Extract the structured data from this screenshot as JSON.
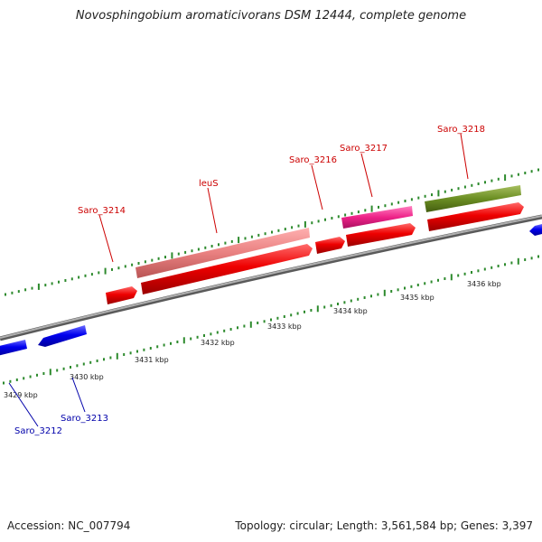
{
  "title": "Novosphingobium aromaticivorans DSM 12444, complete genome",
  "footer": {
    "accession": "Accession: NC_007794",
    "summary": "Topology: circular; Length: 3,561,584 bp; Genes: 3,397"
  },
  "colors": {
    "backbone": "#8a8a8a",
    "tick": "#2d8a2d",
    "gene_forward": "#ee0000",
    "gene_reverse": "#0000ee",
    "label_forward": "#cc0000",
    "label_reverse": "#0000aa",
    "gene_leuS": "#e98080",
    "gene_3217": "#ee2288",
    "gene_3218": "#6b8e23"
  },
  "ticks": [
    {
      "label": "3429 kbp"
    },
    {
      "label": "3430 kbp"
    },
    {
      "label": "3431 kbp"
    },
    {
      "label": "3432 kbp"
    },
    {
      "label": "3433 kbp"
    },
    {
      "label": "3434 kbp"
    },
    {
      "label": "3435 kbp"
    },
    {
      "label": "3436 kbp"
    }
  ],
  "gene_labels": [
    {
      "name": "Saro_3212",
      "strand": "reverse"
    },
    {
      "name": "Saro_3213",
      "strand": "reverse"
    },
    {
      "name": "Saro_3214",
      "strand": "forward"
    },
    {
      "name": "leuS",
      "strand": "forward"
    },
    {
      "name": "Saro_3216",
      "strand": "forward"
    },
    {
      "name": "Saro_3217",
      "strand": "forward"
    },
    {
      "name": "Saro_3218",
      "strand": "forward"
    }
  ]
}
